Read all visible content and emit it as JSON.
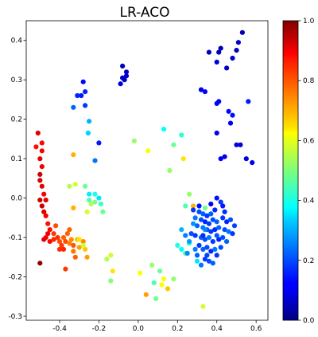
{
  "chart_data": {
    "type": "scatter",
    "title": "LR-ACO",
    "xlabel": "",
    "ylabel": "",
    "xlim": [
      -0.57,
      0.66
    ],
    "ylim": [
      -0.31,
      0.45
    ],
    "xticks": [
      "-0.4",
      "-0.2",
      "0.0",
      "0.2",
      "0.4",
      "0.6"
    ],
    "xtick_values": [
      -0.4,
      -0.2,
      0.0,
      0.2,
      0.4,
      0.6
    ],
    "yticks": [
      "-0.3",
      "-0.2",
      "-0.1",
      "0.0",
      "0.1",
      "0.2",
      "0.3",
      "0.4"
    ],
    "ytick_values": [
      -0.3,
      -0.2,
      -0.1,
      0.0,
      0.1,
      0.2,
      0.3,
      0.4
    ],
    "colormap": "jet",
    "colorbar": {
      "range": [
        0.0,
        1.0
      ],
      "ticks": [
        "0.0",
        "0.2",
        "0.4",
        "0.6",
        "0.8",
        "1.0"
      ],
      "tick_values": [
        0.0,
        0.2,
        0.4,
        0.6,
        0.8,
        1.0
      ]
    },
    "grid": false,
    "points": [
      [
        0.53,
        0.42,
        0.05
      ],
      [
        0.51,
        0.395,
        0.08
      ],
      [
        0.5,
        0.375,
        0.06
      ],
      [
        0.48,
        0.355,
        0.08
      ],
      [
        0.45,
        0.33,
        0.07
      ],
      [
        0.42,
        0.38,
        0.05
      ],
      [
        0.41,
        0.37,
        0.06
      ],
      [
        0.36,
        0.37,
        0.07
      ],
      [
        0.4,
        0.345,
        0.09
      ],
      [
        0.32,
        0.275,
        0.1
      ],
      [
        0.34,
        0.27,
        0.12
      ],
      [
        0.4,
        0.24,
        0.13
      ],
      [
        0.41,
        0.245,
        0.12
      ],
      [
        0.4,
        0.165,
        0.11
      ],
      [
        0.46,
        0.22,
        0.13
      ],
      [
        0.48,
        0.21,
        0.14
      ],
      [
        0.47,
        0.19,
        0.12
      ],
      [
        0.56,
        0.245,
        0.15
      ],
      [
        0.5,
        0.135,
        0.1
      ],
      [
        0.52,
        0.135,
        0.08
      ],
      [
        0.55,
        0.1,
        0.09
      ],
      [
        0.58,
        0.09,
        0.11
      ],
      [
        0.44,
        0.105,
        0.1
      ],
      [
        0.42,
        0.1,
        0.12
      ],
      [
        -0.08,
        0.335,
        0.06
      ],
      [
        -0.06,
        0.32,
        0.07
      ],
      [
        -0.06,
        0.31,
        0.08
      ],
      [
        -0.07,
        0.3,
        0.08
      ],
      [
        -0.09,
        0.29,
        0.09
      ],
      [
        -0.08,
        0.305,
        0.07
      ],
      [
        -0.28,
        0.295,
        0.13
      ],
      [
        -0.29,
        0.26,
        0.15
      ],
      [
        -0.27,
        0.27,
        0.16
      ],
      [
        -0.31,
        0.26,
        0.16
      ],
      [
        -0.33,
        0.23,
        0.22
      ],
      [
        -0.27,
        0.235,
        0.18
      ],
      [
        -0.25,
        0.195,
        0.3
      ],
      [
        -0.255,
        0.165,
        0.33
      ],
      [
        -0.2,
        0.14,
        0.15
      ],
      [
        -0.22,
        0.095,
        0.24
      ],
      [
        -0.02,
        0.145,
        0.52
      ],
      [
        0.05,
        0.12,
        0.62
      ],
      [
        0.13,
        0.175,
        0.38
      ],
      [
        0.18,
        0.135,
        0.48
      ],
      [
        0.22,
        0.16,
        0.42
      ],
      [
        0.23,
        0.1,
        0.65
      ],
      [
        0.16,
        0.07,
        0.52
      ],
      [
        -0.33,
        0.11,
        0.7
      ],
      [
        -0.52,
        0.13,
        0.86
      ],
      [
        -0.51,
        0.165,
        0.9
      ],
      [
        -0.49,
        0.14,
        0.87
      ],
      [
        -0.49,
        0.12,
        0.88
      ],
      [
        -0.5,
        0.1,
        0.9
      ],
      [
        -0.49,
        0.08,
        0.89
      ],
      [
        -0.5,
        0.06,
        0.92
      ],
      [
        -0.5,
        0.045,
        0.91
      ],
      [
        -0.49,
        0.03,
        0.9
      ],
      [
        -0.48,
        0.01,
        0.88
      ],
      [
        -0.5,
        -0.005,
        0.92
      ],
      [
        -0.47,
        -0.005,
        0.9
      ],
      [
        -0.49,
        -0.02,
        0.93
      ],
      [
        -0.48,
        -0.035,
        0.91
      ],
      [
        -0.47,
        -0.045,
        0.88
      ],
      [
        -0.46,
        -0.065,
        0.86
      ],
      [
        -0.45,
        -0.08,
        0.87
      ],
      [
        -0.46,
        -0.09,
        0.89
      ],
      [
        -0.47,
        -0.1,
        0.88
      ],
      [
        -0.48,
        -0.105,
        0.9
      ],
      [
        -0.45,
        -0.11,
        0.87
      ],
      [
        -0.43,
        -0.09,
        0.82
      ],
      [
        -0.42,
        -0.07,
        0.8
      ],
      [
        -0.43,
        -0.105,
        0.84
      ],
      [
        -0.41,
        -0.1,
        0.83
      ],
      [
        -0.4,
        -0.11,
        0.8
      ],
      [
        -0.39,
        -0.12,
        0.82
      ],
      [
        -0.38,
        -0.1,
        0.78
      ],
      [
        -0.37,
        -0.11,
        0.8
      ],
      [
        -0.36,
        -0.09,
        0.78
      ],
      [
        -0.38,
        -0.13,
        0.84
      ],
      [
        -0.37,
        -0.18,
        0.82
      ],
      [
        -0.35,
        -0.115,
        0.75
      ],
      [
        -0.34,
        -0.105,
        0.74
      ],
      [
        -0.33,
        -0.135,
        0.76
      ],
      [
        -0.32,
        -0.15,
        0.78
      ],
      [
        -0.33,
        -0.12,
        0.79
      ],
      [
        -0.31,
        -0.105,
        0.7
      ],
      [
        -0.3,
        -0.125,
        0.72
      ],
      [
        -0.28,
        -0.11,
        0.74
      ],
      [
        -0.27,
        -0.13,
        0.68
      ],
      [
        -0.26,
        -0.15,
        0.72
      ],
      [
        -0.4,
        -0.13,
        0.83
      ],
      [
        -0.35,
        -0.08,
        0.78
      ],
      [
        -0.5,
        -0.165,
        0.98
      ],
      [
        -0.13,
        -0.185,
        0.65
      ],
      [
        0.04,
        -0.245,
        0.72
      ],
      [
        -0.35,
        0.03,
        0.55
      ],
      [
        -0.32,
        0.035,
        0.58
      ],
      [
        -0.27,
        0.03,
        0.48
      ],
      [
        -0.25,
        0.01,
        0.36
      ],
      [
        -0.22,
        0.01,
        0.4
      ],
      [
        -0.2,
        0.0,
        0.35
      ],
      [
        -0.25,
        -0.005,
        0.45
      ],
      [
        -0.24,
        -0.015,
        0.55
      ],
      [
        -0.22,
        -0.01,
        0.5
      ],
      [
        -0.19,
        -0.015,
        0.43
      ],
      [
        -0.26,
        -0.035,
        0.58
      ],
      [
        -0.18,
        -0.035,
        0.48
      ],
      [
        -0.33,
        -0.025,
        0.7
      ],
      [
        -0.3,
        -0.105,
        0.65
      ],
      [
        -0.28,
        -0.12,
        0.58
      ],
      [
        -0.16,
        -0.155,
        0.55
      ],
      [
        -0.14,
        -0.145,
        0.58
      ],
      [
        -0.14,
        -0.21,
        0.5
      ],
      [
        0.01,
        -0.19,
        0.62
      ],
      [
        0.07,
        -0.17,
        0.53
      ],
      [
        0.11,
        -0.185,
        0.48
      ],
      [
        0.13,
        -0.205,
        0.62
      ],
      [
        0.18,
        -0.205,
        0.52
      ],
      [
        0.12,
        -0.22,
        0.62
      ],
      [
        0.15,
        -0.23,
        0.68
      ],
      [
        0.09,
        -0.255,
        0.48
      ],
      [
        0.33,
        -0.275,
        0.58
      ],
      [
        0.08,
        -0.215,
        0.45
      ],
      [
        0.3,
        -0.16,
        0.35
      ],
      [
        0.2,
        -0.12,
        0.4
      ],
      [
        0.22,
        -0.13,
        0.38
      ],
      [
        0.24,
        -0.14,
        0.45
      ],
      [
        0.26,
        -0.115,
        0.42
      ],
      [
        0.26,
        0.01,
        0.52
      ],
      [
        0.28,
        -0.02,
        0.7
      ],
      [
        0.24,
        -0.02,
        0.45
      ],
      [
        0.34,
        -0.025,
        0.48
      ],
      [
        0.22,
        -0.08,
        0.3
      ],
      [
        0.24,
        -0.095,
        0.25
      ],
      [
        0.28,
        -0.03,
        0.18
      ],
      [
        0.31,
        -0.035,
        0.2
      ],
      [
        0.33,
        -0.04,
        0.22
      ],
      [
        0.35,
        -0.045,
        0.18
      ],
      [
        0.37,
        -0.04,
        0.22
      ],
      [
        0.39,
        -0.03,
        0.16
      ],
      [
        0.4,
        0.0,
        0.14
      ],
      [
        0.42,
        -0.01,
        0.18
      ],
      [
        0.29,
        -0.05,
        0.24
      ],
      [
        0.32,
        -0.055,
        0.2
      ],
      [
        0.34,
        -0.06,
        0.16
      ],
      [
        0.36,
        -0.065,
        0.18
      ],
      [
        0.38,
        -0.055,
        0.2
      ],
      [
        0.4,
        -0.06,
        0.22
      ],
      [
        0.43,
        -0.05,
        0.18
      ],
      [
        0.45,
        -0.06,
        0.16
      ],
      [
        0.47,
        -0.055,
        0.2
      ],
      [
        0.3,
        -0.07,
        0.22
      ],
      [
        0.33,
        -0.075,
        0.24
      ],
      [
        0.35,
        -0.08,
        0.2
      ],
      [
        0.37,
        -0.085,
        0.18
      ],
      [
        0.39,
        -0.08,
        0.16
      ],
      [
        0.41,
        -0.075,
        0.22
      ],
      [
        0.44,
        -0.08,
        0.2
      ],
      [
        0.46,
        -0.085,
        0.24
      ],
      [
        0.48,
        -0.09,
        0.18
      ],
      [
        0.27,
        -0.09,
        0.2
      ],
      [
        0.29,
        -0.095,
        0.18
      ],
      [
        0.32,
        -0.1,
        0.22
      ],
      [
        0.34,
        -0.105,
        0.2
      ],
      [
        0.36,
        -0.1,
        0.24
      ],
      [
        0.38,
        -0.11,
        0.18
      ],
      [
        0.41,
        -0.105,
        0.16
      ],
      [
        0.43,
        -0.1,
        0.2
      ],
      [
        0.45,
        -0.11,
        0.22
      ],
      [
        0.31,
        -0.12,
        0.18
      ],
      [
        0.33,
        -0.13,
        0.22
      ],
      [
        0.35,
        -0.125,
        0.2
      ],
      [
        0.37,
        -0.135,
        0.16
      ],
      [
        0.39,
        -0.13,
        0.24
      ],
      [
        0.42,
        -0.125,
        0.2
      ],
      [
        0.3,
        -0.145,
        0.22
      ],
      [
        0.34,
        -0.155,
        0.18
      ],
      [
        0.36,
        -0.16,
        0.2
      ],
      [
        0.32,
        -0.17,
        0.24
      ],
      [
        0.38,
        -0.165,
        0.22
      ],
      [
        0.4,
        -0.145,
        0.18
      ],
      [
        0.26,
        -0.11,
        0.28
      ],
      [
        0.25,
        -0.14,
        0.26
      ],
      [
        0.34,
        -0.08,
        0.26
      ],
      [
        0.31,
        -0.02,
        0.14
      ],
      [
        0.37,
        -0.015,
        0.12
      ],
      [
        0.43,
        -0.02,
        0.15
      ],
      [
        0.49,
        -0.07,
        0.19
      ],
      [
        0.28,
        -0.065,
        0.27
      ],
      [
        0.33,
        -0.095,
        0.17
      ],
      [
        0.4,
        -0.095,
        0.21
      ],
      [
        0.35,
        -0.145,
        0.19
      ],
      [
        0.29,
        -0.13,
        0.25
      ],
      [
        0.44,
        -0.035,
        0.17
      ]
    ]
  }
}
